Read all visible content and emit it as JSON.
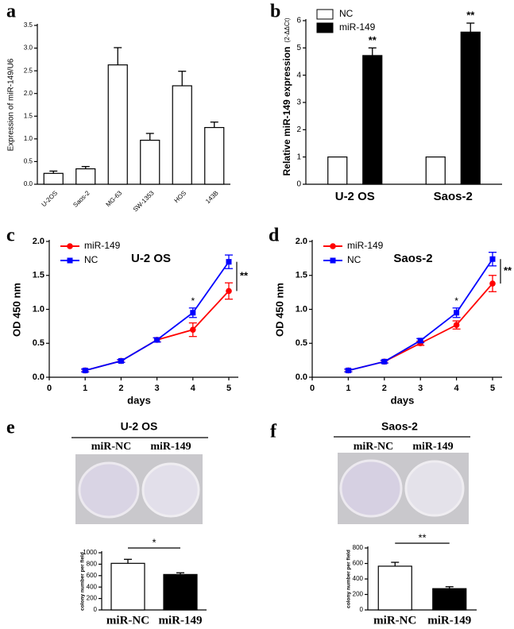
{
  "chart_data": [
    {
      "type": "bar",
      "label": "a",
      "ylabel": "Expression of miR-149/U6",
      "categories": [
        "U-2OS",
        "Saos-2",
        "MG-63",
        "SW-1353",
        "HOS",
        "143B"
      ],
      "values": [
        0.24,
        0.34,
        2.63,
        0.97,
        2.17,
        1.25
      ],
      "errors": [
        0.05,
        0.05,
        0.38,
        0.15,
        0.32,
        0.12
      ],
      "color": "#ffffff",
      "ylim": [
        0,
        3.5
      ],
      "yticks": [
        {
          "value": 0,
          "label": "0.0"
        },
        0.5,
        {
          "value": 1,
          "label": "1.0"
        },
        1.5,
        {
          "value": 2,
          "label": "2.0"
        },
        2.5,
        {
          "value": 3,
          "label": "3.0"
        },
        3.5
      ]
    },
    {
      "type": "bar",
      "label": "b",
      "ylabel": "Relative miR-149 expression",
      "ylabel_unit": "(2-ΔΔCt)",
      "categories": [
        "U-2 OS",
        "Saos-2"
      ],
      "series": [
        {
          "name": "NC",
          "color": "#ffffff",
          "values": [
            1,
            1
          ],
          "errors": [
            0,
            0
          ]
        },
        {
          "name": "miR-149",
          "color": "#000000",
          "values": [
            4.72,
            5.58
          ],
          "errors": [
            0.28,
            0.33
          ]
        }
      ],
      "annotations": [
        "**",
        "**"
      ],
      "legend": "upper left",
      "ylim": [
        0,
        6
      ],
      "yticks": [
        0,
        1,
        2,
        3,
        4,
        5,
        6
      ]
    },
    {
      "type": "line",
      "label": "c",
      "title": "U-2 OS",
      "xlabel": "days",
      "ylabel": "OD 450 nm",
      "x": [
        1,
        2,
        3,
        4,
        5
      ],
      "series": [
        {
          "name": "miR-149",
          "color": "#ff0000",
          "marker": "circle",
          "values": [
            0.1,
            0.24,
            0.55,
            0.7,
            1.27
          ],
          "errors": [
            0.02,
            0.02,
            0.03,
            0.1,
            0.12
          ]
        },
        {
          "name": "NC",
          "color": "#0000ff",
          "marker": "square",
          "values": [
            0.1,
            0.24,
            0.55,
            0.95,
            1.7
          ],
          "errors": [
            0.02,
            0.02,
            0.03,
            0.07,
            0.1
          ]
        }
      ],
      "annotations": [
        "*",
        "**"
      ],
      "legend": "upper left",
      "xlim": [
        0,
        5
      ],
      "xticks": [
        0,
        1,
        2,
        3,
        4,
        5
      ],
      "ylim": [
        0,
        2
      ],
      "yticks": [
        {
          "value": 0,
          "label": "0.0"
        },
        0.5,
        {
          "value": 1,
          "label": "1.0"
        },
        1.5,
        {
          "value": 2,
          "label": "2.0"
        }
      ]
    },
    {
      "type": "line",
      "label": "d",
      "title": "Saos-2",
      "xlabel": "days",
      "ylabel": "OD 450 nm",
      "x": [
        1,
        2,
        3,
        4,
        5
      ],
      "series": [
        {
          "name": "miR-149",
          "color": "#ff0000",
          "marker": "circle",
          "values": [
            0.1,
            0.23,
            0.5,
            0.77,
            1.38
          ],
          "errors": [
            0.02,
            0.02,
            0.03,
            0.06,
            0.12
          ]
        },
        {
          "name": "NC",
          "color": "#0000ff",
          "marker": "square",
          "values": [
            0.1,
            0.23,
            0.54,
            0.95,
            1.74
          ],
          "errors": [
            0.02,
            0.02,
            0.03,
            0.07,
            0.1
          ]
        }
      ],
      "annotations": [
        "*",
        "**"
      ],
      "legend": "upper left",
      "xlim": [
        0,
        5
      ],
      "xticks": [
        0,
        1,
        2,
        3,
        4,
        5
      ],
      "ylim": [
        0,
        2
      ],
      "yticks": [
        {
          "value": 0,
          "label": "0.0"
        },
        0.5,
        {
          "value": 1,
          "label": "1.0"
        },
        1.5,
        {
          "value": 2,
          "label": "2.0"
        }
      ]
    },
    {
      "type": "bar",
      "label": "e",
      "title": "U-2 OS",
      "photo_labels": [
        "miR-NC",
        "miR-149"
      ],
      "ylabel": "colony number per field",
      "categories": [
        "miR-NC",
        "miR-149"
      ],
      "values": [
        815,
        620
      ],
      "errors": [
        70,
        30
      ],
      "colors": [
        "#ffffff",
        "#000000"
      ],
      "annotations": [
        "*"
      ],
      "ylim": [
        0,
        1000
      ],
      "yticks": [
        0,
        200,
        400,
        600,
        800,
        1000
      ]
    },
    {
      "type": "bar",
      "label": "f",
      "title": "Saos-2",
      "photo_labels": [
        "miR-NC",
        "miR-149"
      ],
      "ylabel": "colony number per field",
      "categories": [
        "miR-NC",
        "miR-149"
      ],
      "values": [
        565,
        275
      ],
      "errors": [
        50,
        25
      ],
      "colors": [
        "#ffffff",
        "#000000"
      ],
      "annotations": [
        "**"
      ],
      "ylim": [
        0,
        800
      ],
      "yticks": [
        0,
        200,
        400,
        600,
        800
      ]
    }
  ]
}
